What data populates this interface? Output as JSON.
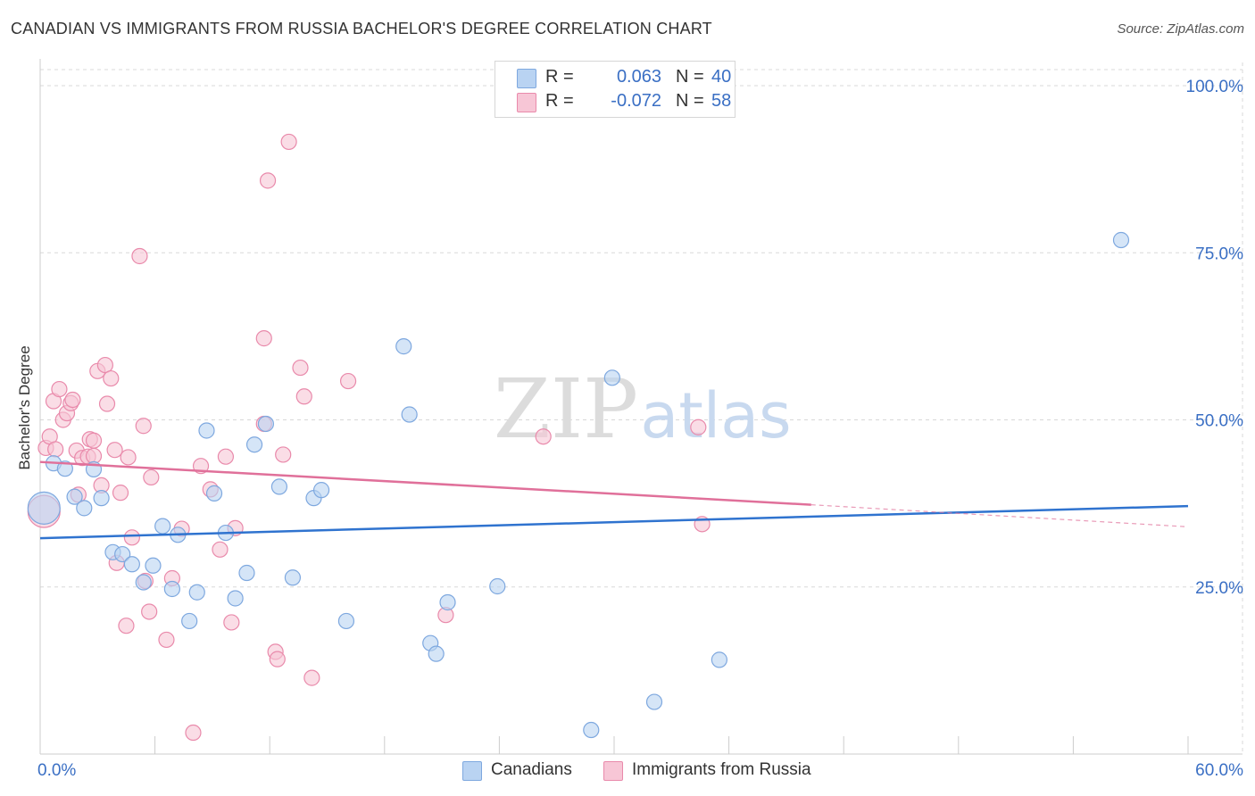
{
  "title": "CANADIAN VS IMMIGRANTS FROM RUSSIA BACHELOR'S DEGREE CORRELATION CHART",
  "source": "Source: ZipAtlas.com",
  "watermark": {
    "zip": "ZIP",
    "atlas": "atlas"
  },
  "legend": {
    "rows": [
      {
        "r_label": "R =",
        "r_value": "0.063",
        "n_label": "N =",
        "n_value": "40"
      },
      {
        "r_label": "R =",
        "r_value": "-0.072",
        "n_label": "N =",
        "n_value": "58"
      }
    ]
  },
  "bottom_legend": {
    "series1": "Canadians",
    "series2": "Immigrants from Russia"
  },
  "colors": {
    "canadians_fill": "#b9d3f2",
    "canadians_stroke": "#7ea8df",
    "canadians_line": "#2f73cf",
    "russia_fill": "#f7c6d6",
    "russia_stroke": "#e98aab",
    "russia_line": "#e0709a",
    "tick_label": "#3a6fc4",
    "grid": "#d8d8d8"
  },
  "chart_data": {
    "type": "scatter",
    "title": "CANADIAN VS IMMIGRANTS FROM RUSSIA BACHELOR'S DEGREE CORRELATION CHART",
    "xlabel": "",
    "ylabel": "Bachelor's Degree",
    "xlim": [
      0,
      60
    ],
    "ylim": [
      0,
      103
    ],
    "x_tick_labels": [
      "0.0%",
      "60.0%"
    ],
    "y_ticks": [
      25,
      50,
      75,
      100
    ],
    "y_tick_labels": [
      "25.0%",
      "50.0%",
      "75.0%",
      "100.0%"
    ],
    "grid": true,
    "series": [
      {
        "name": "Canadians",
        "r": 0.063,
        "n": 40,
        "trend": {
          "x": [
            0,
            60
          ],
          "y": [
            32.3,
            37.1
          ]
        },
        "points": [
          {
            "x": 0.2,
            "y": 36.8,
            "big": true
          },
          {
            "x": 0.7,
            "y": 43.5
          },
          {
            "x": 1.3,
            "y": 42.7
          },
          {
            "x": 1.8,
            "y": 38.5
          },
          {
            "x": 2.3,
            "y": 36.8
          },
          {
            "x": 2.8,
            "y": 42.6
          },
          {
            "x": 3.2,
            "y": 38.3
          },
          {
            "x": 3.8,
            "y": 30.2
          },
          {
            "x": 4.3,
            "y": 29.9
          },
          {
            "x": 4.8,
            "y": 28.4
          },
          {
            "x": 5.4,
            "y": 25.7
          },
          {
            "x": 5.9,
            "y": 28.2
          },
          {
            "x": 6.4,
            "y": 34.1
          },
          {
            "x": 6.9,
            "y": 24.7
          },
          {
            "x": 7.2,
            "y": 32.8
          },
          {
            "x": 7.8,
            "y": 19.9
          },
          {
            "x": 8.2,
            "y": 24.2
          },
          {
            "x": 8.7,
            "y": 48.4
          },
          {
            "x": 9.1,
            "y": 39.0
          },
          {
            "x": 9.7,
            "y": 33.1
          },
          {
            "x": 10.2,
            "y": 23.3
          },
          {
            "x": 10.8,
            "y": 27.1
          },
          {
            "x": 11.2,
            "y": 46.3
          },
          {
            "x": 11.8,
            "y": 49.4
          },
          {
            "x": 12.5,
            "y": 40.0
          },
          {
            "x": 13.2,
            "y": 26.4
          },
          {
            "x": 14.3,
            "y": 38.3
          },
          {
            "x": 14.7,
            "y": 39.5
          },
          {
            "x": 16.0,
            "y": 19.9
          },
          {
            "x": 19.0,
            "y": 61.0
          },
          {
            "x": 19.3,
            "y": 50.8
          },
          {
            "x": 20.4,
            "y": 16.6
          },
          {
            "x": 20.7,
            "y": 15.0
          },
          {
            "x": 21.3,
            "y": 22.7
          },
          {
            "x": 23.9,
            "y": 25.1
          },
          {
            "x": 28.8,
            "y": 3.6
          },
          {
            "x": 29.9,
            "y": 56.3
          },
          {
            "x": 32.1,
            "y": 7.8
          },
          {
            "x": 35.5,
            "y": 14.1
          },
          {
            "x": 56.5,
            "y": 76.9
          }
        ]
      },
      {
        "name": "Immigrants from Russia",
        "r": -0.072,
        "n": 58,
        "trend": {
          "x": [
            0,
            40.3
          ],
          "y": [
            43.7,
            37.3
          ]
        },
        "trend_dashed": {
          "x": [
            40.3,
            60
          ],
          "y": [
            37.3,
            34.0
          ]
        },
        "points": [
          {
            "x": 0.2,
            "y": 36.3,
            "big": true
          },
          {
            "x": 0.3,
            "y": 45.8
          },
          {
            "x": 0.5,
            "y": 47.5
          },
          {
            "x": 0.8,
            "y": 45.6
          },
          {
            "x": 0.7,
            "y": 52.8
          },
          {
            "x": 1.0,
            "y": 54.6
          },
          {
            "x": 1.2,
            "y": 50.0
          },
          {
            "x": 1.4,
            "y": 51.0
          },
          {
            "x": 1.6,
            "y": 52.5
          },
          {
            "x": 1.7,
            "y": 53.0
          },
          {
            "x": 1.9,
            "y": 45.4
          },
          {
            "x": 2.0,
            "y": 38.8
          },
          {
            "x": 2.2,
            "y": 44.3
          },
          {
            "x": 2.5,
            "y": 44.5
          },
          {
            "x": 2.6,
            "y": 47.1
          },
          {
            "x": 2.8,
            "y": 46.9
          },
          {
            "x": 2.8,
            "y": 44.6
          },
          {
            "x": 3.0,
            "y": 57.3
          },
          {
            "x": 3.2,
            "y": 40.2
          },
          {
            "x": 3.4,
            "y": 58.2
          },
          {
            "x": 3.5,
            "y": 52.4
          },
          {
            "x": 3.7,
            "y": 56.2
          },
          {
            "x": 3.9,
            "y": 45.5
          },
          {
            "x": 4.0,
            "y": 28.6
          },
          {
            "x": 4.2,
            "y": 39.1
          },
          {
            "x": 4.5,
            "y": 19.2
          },
          {
            "x": 4.6,
            "y": 44.4
          },
          {
            "x": 4.8,
            "y": 32.4
          },
          {
            "x": 5.2,
            "y": 74.5
          },
          {
            "x": 5.4,
            "y": 49.1
          },
          {
            "x": 5.5,
            "y": 25.9
          },
          {
            "x": 5.7,
            "y": 21.3
          },
          {
            "x": 5.8,
            "y": 41.4
          },
          {
            "x": 6.6,
            "y": 17.1
          },
          {
            "x": 6.9,
            "y": 26.3
          },
          {
            "x": 7.4,
            "y": 33.7
          },
          {
            "x": 8.0,
            "y": 3.2
          },
          {
            "x": 8.4,
            "y": 43.1
          },
          {
            "x": 8.9,
            "y": 39.6
          },
          {
            "x": 9.4,
            "y": 30.6
          },
          {
            "x": 9.7,
            "y": 44.5
          },
          {
            "x": 10.0,
            "y": 19.7
          },
          {
            "x": 10.2,
            "y": 33.8
          },
          {
            "x": 11.7,
            "y": 49.4
          },
          {
            "x": 11.7,
            "y": 62.2
          },
          {
            "x": 11.9,
            "y": 85.8
          },
          {
            "x": 12.3,
            "y": 15.3
          },
          {
            "x": 12.4,
            "y": 14.2
          },
          {
            "x": 12.7,
            "y": 44.8
          },
          {
            "x": 13.0,
            "y": 91.6
          },
          {
            "x": 13.6,
            "y": 57.8
          },
          {
            "x": 13.8,
            "y": 53.5
          },
          {
            "x": 14.2,
            "y": 11.4
          },
          {
            "x": 16.1,
            "y": 55.8
          },
          {
            "x": 21.2,
            "y": 20.8
          },
          {
            "x": 26.3,
            "y": 47.5
          },
          {
            "x": 34.4,
            "y": 48.9
          },
          {
            "x": 34.6,
            "y": 34.4
          }
        ]
      }
    ]
  }
}
